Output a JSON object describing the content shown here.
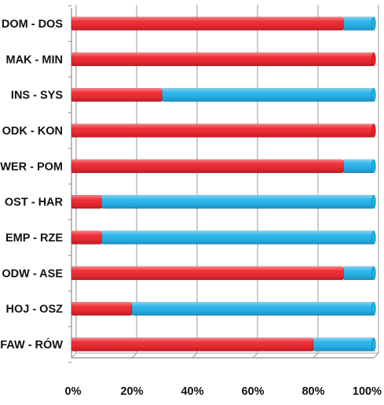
{
  "chart_data": {
    "type": "bar",
    "orientation": "horizontal",
    "stacked": true,
    "percent_stacked": true,
    "categories": [
      "DOM - DOS",
      "MAK - MIN",
      "INS - SYS",
      "ODK - KON",
      "WER - POM",
      "OST - HAR",
      "EMP - RZE",
      "ODW - ASE",
      "HOJ - OSZ",
      "FAW - RÓW"
    ],
    "series": [
      {
        "color": "#ee1c25",
        "values": [
          90,
          100,
          30,
          100,
          90,
          10,
          10,
          90,
          20,
          80
        ]
      },
      {
        "color": "#1ab0ea",
        "values": [
          10,
          0,
          70,
          0,
          10,
          90,
          90,
          10,
          80,
          20
        ]
      }
    ],
    "x_ticks": [
      "0%",
      "20%",
      "40%",
      "60%",
      "80%",
      "100%"
    ],
    "xlim": [
      0,
      100
    ],
    "grid": true,
    "legend": "none",
    "title": "",
    "xlabel": "",
    "ylabel": ""
  }
}
